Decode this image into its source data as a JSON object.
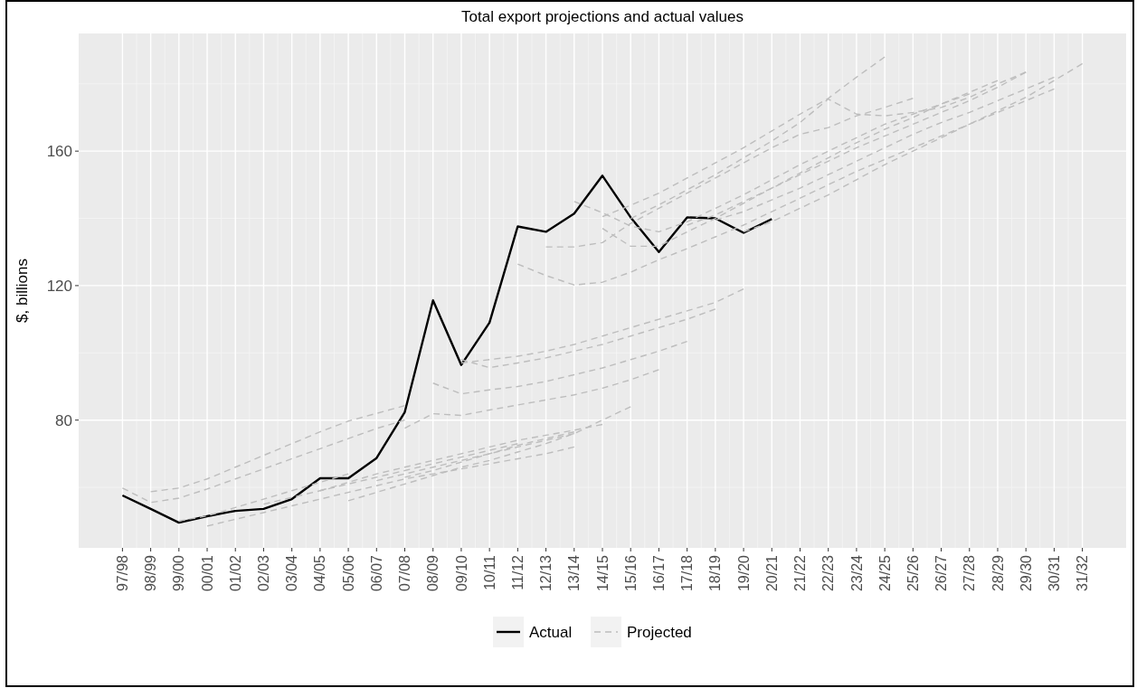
{
  "chart_data": {
    "type": "line",
    "title": "Total export projections and actual values",
    "ylabel": "$, billions",
    "categories": [
      "97/98",
      "98/99",
      "99/00",
      "00/01",
      "01/02",
      "02/03",
      "03/04",
      "04/05",
      "05/06",
      "06/07",
      "07/08",
      "08/09",
      "09/10",
      "10/11",
      "11/12",
      "12/13",
      "13/14",
      "14/15",
      "15/16",
      "16/17",
      "17/18",
      "18/19",
      "19/20",
      "20/21",
      "21/22",
      "22/23",
      "23/24",
      "24/25",
      "25/26",
      "26/27",
      "27/28",
      "28/29",
      "29/30",
      "30/31",
      "31/32"
    ],
    "ylim": [
      42,
      195
    ],
    "yticks": [
      80,
      120,
      160
    ],
    "grid": true,
    "legend": "bottom",
    "series": [
      {
        "name": "Actual",
        "color": "#000000",
        "line_style": "solid",
        "values": [
          57.6,
          53.6,
          49.5,
          51.4,
          53,
          53.6,
          56.5,
          62.7,
          62.7,
          68.7,
          82.4,
          115.6,
          96.4,
          109,
          137.6,
          136,
          141.4,
          152.7,
          140.3,
          130,
          140.3,
          140,
          135.7,
          139.8,
          null,
          null,
          null,
          null,
          null,
          null,
          null,
          null,
          null,
          null,
          null
        ]
      },
      {
        "name": "Projected",
        "color": "#bdbdbd",
        "line_style": "dashed",
        "values": [
          59.8,
          55.5,
          56.8,
          59.5,
          62.5,
          65.5,
          68.5,
          71.5,
          74.5,
          77.5,
          80,
          null,
          null,
          null,
          null,
          null,
          null,
          null,
          null,
          null,
          null,
          null,
          null,
          null,
          null,
          null,
          null,
          null,
          null,
          null,
          null,
          null,
          null,
          null,
          null
        ]
      },
      {
        "color": "#bdbdbd",
        "line_style": "dashed",
        "values": [
          null,
          58.7,
          59.8,
          62.5,
          66,
          69.5,
          73,
          76.5,
          79.7,
          82,
          84.3,
          null,
          null,
          null,
          null,
          null,
          null,
          null,
          null,
          null,
          null,
          null,
          null,
          null,
          null,
          null,
          null,
          null,
          null,
          null,
          null,
          null,
          null,
          null,
          null
        ]
      },
      {
        "color": "#bdbdbd",
        "line_style": "dashed",
        "values": [
          null,
          null,
          50,
          51.5,
          54,
          56.5,
          59,
          61.5,
          64,
          null,
          null,
          null,
          null,
          null,
          null,
          null,
          null,
          null,
          null,
          null,
          null,
          null,
          null,
          null,
          null,
          null,
          null,
          null,
          null,
          null,
          null,
          null,
          null,
          null,
          null
        ]
      },
      {
        "color": "#bdbdbd",
        "line_style": "dashed",
        "values": [
          null,
          null,
          null,
          48.5,
          50.5,
          52.5,
          54.5,
          56.5,
          58.5,
          60.5,
          62.5,
          64,
          65.5,
          67,
          68.5,
          70,
          72,
          null,
          null,
          null,
          null,
          null,
          null,
          null,
          null,
          null,
          null,
          null,
          null,
          null,
          null,
          null,
          null,
          null,
          null
        ]
      },
      {
        "color": "#bdbdbd",
        "line_style": "dashed",
        "values": [
          null,
          null,
          null,
          null,
          null,
          55,
          57,
          59,
          61,
          63,
          65,
          67,
          69,
          71,
          73,
          null,
          null,
          null,
          null,
          null,
          null,
          null,
          null,
          null,
          null,
          null,
          null,
          null,
          null,
          null,
          null,
          null,
          null,
          null,
          null
        ]
      },
      {
        "color": "#bdbdbd",
        "line_style": "dashed",
        "values": [
          null,
          null,
          null,
          null,
          null,
          null,
          null,
          59,
          61.5,
          64,
          66,
          68,
          70,
          72,
          74,
          75.5,
          77,
          78.7,
          null,
          null,
          null,
          null,
          null,
          null,
          null,
          null,
          null,
          null,
          null,
          null,
          null,
          null,
          null,
          null,
          null
        ]
      },
      {
        "color": "#bdbdbd",
        "line_style": "dashed",
        "values": [
          null,
          null,
          null,
          null,
          null,
          null,
          null,
          null,
          56,
          58.5,
          61,
          63.5,
          66,
          68,
          70.5,
          73,
          76,
          80,
          84,
          null,
          null,
          null,
          null,
          null,
          null,
          null,
          null,
          null,
          null,
          null,
          null,
          null,
          null,
          null,
          null
        ]
      },
      {
        "color": "#bdbdbd",
        "line_style": "dashed",
        "values": [
          null,
          null,
          null,
          null,
          null,
          null,
          null,
          null,
          null,
          62,
          64,
          66,
          68,
          70,
          72,
          74,
          76,
          null,
          null,
          null,
          null,
          null,
          null,
          null,
          null,
          null,
          null,
          null,
          null,
          null,
          null,
          null,
          null,
          null,
          null
        ]
      },
      {
        "color": "#bdbdbd",
        "line_style": "dashed",
        "values": [
          null,
          null,
          null,
          null,
          null,
          null,
          null,
          null,
          null,
          null,
          63,
          65,
          67.5,
          70,
          72.5,
          74.5,
          76.5,
          null,
          null,
          null,
          null,
          null,
          null,
          null,
          null,
          null,
          null,
          null,
          null,
          null,
          null,
          null,
          null,
          null,
          null
        ]
      },
      {
        "color": "#bdbdbd",
        "line_style": "dashed",
        "values": [
          null,
          null,
          null,
          null,
          null,
          null,
          null,
          null,
          null,
          null,
          77.6,
          81.9,
          81.4,
          83,
          84.5,
          86,
          87.5,
          89.5,
          92,
          95,
          null,
          null,
          null,
          null,
          null,
          null,
          null,
          null,
          null,
          null,
          null,
          null,
          null,
          null,
          null
        ]
      },
      {
        "color": "#bdbdbd",
        "line_style": "dashed",
        "values": [
          null,
          null,
          null,
          null,
          null,
          null,
          null,
          null,
          null,
          null,
          null,
          91,
          87.8,
          89,
          90,
          91.5,
          93.5,
          95.5,
          98,
          100.5,
          103.4,
          null,
          null,
          null,
          null,
          null,
          null,
          null,
          null,
          null,
          null,
          null,
          null,
          null,
          null
        ]
      },
      {
        "color": "#bdbdbd",
        "line_style": "dashed",
        "values": [
          null,
          null,
          null,
          null,
          null,
          null,
          null,
          null,
          null,
          null,
          null,
          null,
          98,
          95.6,
          97,
          98.5,
          100.5,
          102.5,
          105,
          107.5,
          110,
          113,
          null,
          null,
          null,
          null,
          null,
          null,
          null,
          null,
          null,
          null,
          null,
          null,
          null
        ]
      },
      {
        "color": "#bdbdbd",
        "line_style": "dashed",
        "values": [
          null,
          null,
          null,
          null,
          null,
          null,
          null,
          null,
          null,
          null,
          null,
          null,
          97,
          98,
          99,
          100.5,
          102.5,
          105,
          107.5,
          110,
          112.5,
          115,
          119,
          null,
          null,
          null,
          null,
          null,
          null,
          null,
          null,
          null,
          null,
          null,
          null
        ]
      },
      {
        "color": "#bdbdbd",
        "line_style": "dashed",
        "values": [
          null,
          null,
          null,
          null,
          null,
          null,
          null,
          null,
          null,
          null,
          null,
          null,
          null,
          null,
          126.4,
          123,
          120.2,
          121,
          124,
          127.7,
          131,
          134.5,
          138,
          142,
          146,
          150,
          154,
          157.5,
          161,
          164.5,
          168,
          171.5,
          175,
          178.5,
          null
        ]
      },
      {
        "color": "#bdbdbd",
        "line_style": "dashed",
        "values": [
          null,
          null,
          null,
          null,
          null,
          null,
          null,
          null,
          null,
          null,
          null,
          null,
          null,
          null,
          null,
          131.5,
          131.5,
          132.8,
          138.5,
          143,
          147.5,
          152,
          156.5,
          161,
          165,
          167,
          170.5,
          173,
          175.7,
          null,
          null,
          null,
          null,
          null,
          null
        ]
      },
      {
        "color": "#bdbdbd",
        "line_style": "dashed",
        "values": [
          null,
          null,
          null,
          null,
          null,
          null,
          null,
          null,
          null,
          null,
          null,
          null,
          null,
          null,
          null,
          null,
          145,
          141.7,
          137.7,
          136,
          139,
          143,
          147,
          151.5,
          156,
          160,
          164,
          168,
          171,
          174,
          177.5,
          181,
          null,
          null,
          null
        ]
      },
      {
        "color": "#bdbdbd",
        "line_style": "dashed",
        "values": [
          null,
          null,
          null,
          null,
          null,
          null,
          null,
          null,
          null,
          null,
          null,
          null,
          null,
          null,
          null,
          null,
          null,
          137,
          131.7,
          131.7,
          136,
          140,
          144.5,
          149,
          153.5,
          158,
          162.5,
          166.5,
          170,
          174,
          177,
          null,
          null,
          null,
          null
        ]
      },
      {
        "color": "#bdbdbd",
        "line_style": "dashed",
        "values": [
          null,
          null,
          null,
          null,
          null,
          null,
          null,
          null,
          null,
          null,
          null,
          null,
          null,
          null,
          null,
          null,
          null,
          140.5,
          143.9,
          147.5,
          152,
          156.5,
          161,
          166,
          171,
          175.7,
          182,
          188,
          null,
          null,
          null,
          null,
          null,
          null,
          null
        ]
      },
      {
        "color": "#bdbdbd",
        "line_style": "dashed",
        "values": [
          null,
          null,
          null,
          null,
          null,
          null,
          null,
          null,
          null,
          null,
          null,
          null,
          null,
          null,
          null,
          null,
          null,
          null,
          140,
          144,
          148.5,
          153,
          158,
          163,
          168.5,
          175.5,
          171,
          170.5,
          171.5,
          173,
          176,
          180,
          183.5,
          null,
          null
        ]
      },
      {
        "color": "#bdbdbd",
        "line_style": "dashed",
        "values": [
          null,
          null,
          null,
          null,
          null,
          null,
          null,
          null,
          null,
          null,
          null,
          null,
          null,
          null,
          null,
          null,
          null,
          null,
          null,
          null,
          138,
          141,
          145,
          149,
          153,
          157,
          161,
          164.5,
          168,
          171.5,
          175,
          179,
          183.5,
          null,
          null
        ]
      },
      {
        "color": "#bdbdbd",
        "line_style": "dashed",
        "values": [
          null,
          null,
          null,
          null,
          null,
          null,
          null,
          null,
          null,
          null,
          null,
          null,
          null,
          null,
          null,
          null,
          null,
          null,
          null,
          null,
          null,
          139.5,
          142,
          145.5,
          149,
          153,
          157,
          161,
          165,
          168.5,
          171.5,
          175,
          178.5,
          182,
          null
        ]
      },
      {
        "color": "#bdbdbd",
        "line_style": "dashed",
        "values": [
          null,
          null,
          null,
          null,
          null,
          null,
          null,
          null,
          null,
          null,
          null,
          null,
          null,
          null,
          null,
          null,
          null,
          null,
          null,
          null,
          null,
          null,
          136,
          139,
          143,
          147,
          151.5,
          156,
          160,
          164,
          168,
          172,
          176,
          181,
          186
        ]
      }
    ]
  }
}
